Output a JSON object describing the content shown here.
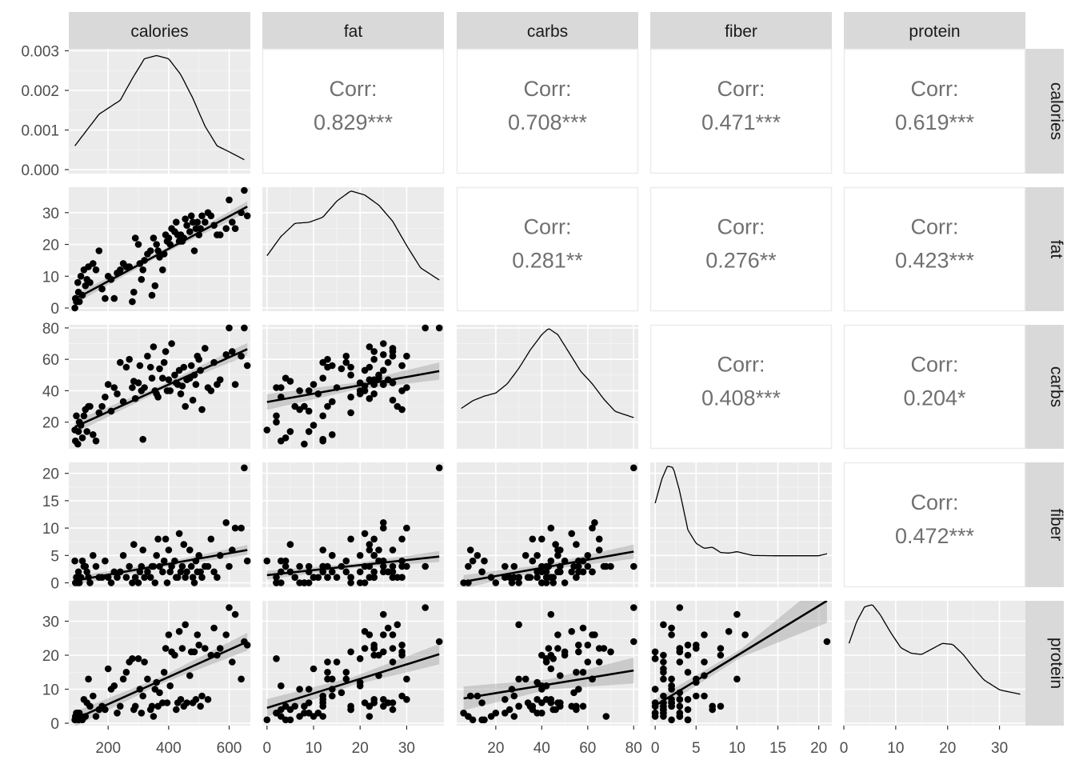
{
  "chart_data": {
    "type": "scatter-matrix",
    "variables": [
      "calories",
      "fat",
      "carbs",
      "fiber",
      "protein"
    ],
    "strip_labels": [
      "calories",
      "fat",
      "carbs",
      "fiber",
      "protein"
    ],
    "corr_label": "Corr:",
    "correlations": [
      {
        "row": "calories",
        "col": "fat",
        "value": "0.829***"
      },
      {
        "row": "calories",
        "col": "carbs",
        "value": "0.708***"
      },
      {
        "row": "calories",
        "col": "fiber",
        "value": "0.471***"
      },
      {
        "row": "calories",
        "col": "protein",
        "value": "0.619***"
      },
      {
        "row": "fat",
        "col": "carbs",
        "value": "0.281**"
      },
      {
        "row": "fat",
        "col": "fiber",
        "value": "0.276**"
      },
      {
        "row": "fat",
        "col": "protein",
        "value": "0.423***"
      },
      {
        "row": "carbs",
        "col": "fiber",
        "value": "0.408***"
      },
      {
        "row": "carbs",
        "col": "protein",
        "value": "0.204*"
      },
      {
        "row": "fiber",
        "col": "protein",
        "value": "0.472***"
      }
    ],
    "x_ranges": {
      "calories": [
        70,
        670
      ],
      "fat": [
        -1,
        38
      ],
      "carbs": [
        3,
        82
      ],
      "fiber": [
        -0.6,
        21.6
      ],
      "protein": [
        0,
        35
      ]
    },
    "y_ranges": {
      "fat": [
        -1,
        38
      ],
      "carbs": [
        3,
        82
      ],
      "fiber": [
        -0.8,
        22
      ],
      "protein": [
        -0.7,
        36
      ]
    },
    "density_yrange": [
      -0.0001,
      0.00305
    ],
    "x_ticks": {
      "calories": [
        200,
        400,
        600
      ],
      "fat": [
        0,
        10,
        20,
        30
      ],
      "carbs": [
        20,
        40,
        60,
        80
      ],
      "fiber": [
        0,
        5,
        10,
        15,
        20
      ],
      "protein": [
        0,
        10,
        20,
        30
      ]
    },
    "x_tick_labels": {
      "calories": [
        "200",
        "400",
        "600"
      ],
      "fat": [
        "0",
        "10",
        "20",
        "30"
      ],
      "carbs": [
        "20",
        "40",
        "60",
        "80"
      ],
      "fiber": [
        "0",
        "5",
        "10",
        "15",
        "20"
      ],
      "protein": [
        "0",
        "10",
        "20",
        "30"
      ]
    },
    "y_ticks": {
      "density": [
        0,
        0.001,
        0.002,
        0.003
      ],
      "fat": [
        0,
        10,
        20,
        30
      ],
      "carbs": [
        20,
        40,
        60,
        80
      ],
      "fiber": [
        0,
        5,
        10,
        15,
        20
      ],
      "protein": [
        0,
        10,
        20,
        30
      ]
    },
    "y_tick_labels": {
      "density": [
        "0.000",
        "0.001",
        "0.002",
        "0.003"
      ],
      "fat": [
        "0",
        "10",
        "20",
        "30"
      ],
      "carbs": [
        "20",
        "40",
        "60",
        "80"
      ],
      "fiber": [
        "0",
        "5",
        "10",
        "15",
        "20"
      ],
      "protein": [
        "0",
        "10",
        "20",
        "30"
      ]
    },
    "densities": {
      "calories": {
        "x": [
          90,
          130,
          170,
          200,
          240,
          280,
          320,
          360,
          400,
          440,
          480,
          520,
          560,
          600,
          650
        ],
        "y": [
          0.0006,
          0.001,
          0.0014,
          0.00155,
          0.00175,
          0.0023,
          0.0028,
          0.00288,
          0.0028,
          0.0024,
          0.0018,
          0.0011,
          0.0006,
          0.00045,
          0.00025
        ]
      },
      "fat": {
        "x": [
          0,
          3,
          6,
          9,
          12,
          15,
          18,
          21,
          24,
          27,
          30,
          33,
          37
        ],
        "y": [
          0.028,
          0.047,
          0.06,
          0.061,
          0.066,
          0.082,
          0.092,
          0.088,
          0.078,
          0.062,
          0.038,
          0.016,
          0.004
        ]
      },
      "carbs": {
        "x": [
          5,
          10,
          15,
          20,
          25,
          30,
          35,
          40,
          43,
          47,
          52,
          57,
          62,
          67,
          72,
          80
        ],
        "y": [
          0.004,
          0.0065,
          0.008,
          0.009,
          0.012,
          0.017,
          0.023,
          0.028,
          0.03,
          0.028,
          0.022,
          0.016,
          0.012,
          0.007,
          0.003,
          0.001
        ]
      },
      "fiber": {
        "x": [
          0,
          0.8,
          1.5,
          2.2,
          3,
          4,
          5,
          6,
          7,
          8,
          9,
          10,
          11,
          12,
          15,
          20,
          21
        ],
        "y": [
          0.18,
          0.26,
          0.305,
          0.3,
          0.22,
          0.09,
          0.045,
          0.028,
          0.032,
          0.014,
          0.012,
          0.017,
          0.01,
          0.004,
          0.003,
          0.003,
          0.01
        ]
      },
      "protein": {
        "x": [
          1,
          2.5,
          4,
          5.5,
          7,
          9,
          11,
          13,
          15,
          17,
          19,
          21,
          23,
          25,
          27,
          30,
          34
        ],
        "y": [
          0.052,
          0.072,
          0.085,
          0.087,
          0.078,
          0.062,
          0.048,
          0.043,
          0.042,
          0.047,
          0.052,
          0.051,
          0.042,
          0.03,
          0.019,
          0.01,
          0.006
        ]
      }
    },
    "observations": {
      "calories": [
        90,
        92,
        95,
        100,
        102,
        105,
        110,
        115,
        120,
        125,
        130,
        135,
        140,
        150,
        160,
        170,
        180,
        190,
        200,
        210,
        220,
        230,
        240,
        250,
        260,
        270,
        280,
        285,
        290,
        300,
        305,
        310,
        315,
        320,
        330,
        340,
        345,
        350,
        355,
        360,
        365,
        370,
        380,
        385,
        390,
        395,
        400,
        405,
        410,
        420,
        425,
        430,
        435,
        440,
        445,
        450,
        455,
        460,
        470,
        475,
        480,
        485,
        490,
        495,
        500,
        505,
        510,
        520,
        530,
        540,
        550,
        560,
        570,
        590,
        600,
        610,
        620,
        640,
        650,
        660
      ],
      "fat": [
        0,
        3,
        2,
        8,
        5,
        2,
        10,
        4,
        12,
        7,
        9,
        13,
        8,
        14,
        12,
        18,
        6,
        3,
        10,
        9,
        3,
        11,
        12,
        14,
        13,
        13,
        2,
        5,
        22,
        20,
        14,
        9,
        12,
        15,
        17,
        18,
        4,
        22,
        7,
        20,
        18,
        16,
        12,
        17,
        23,
        21,
        22,
        20,
        25,
        24,
        27,
        23,
        21,
        23,
        21,
        22,
        28,
        26,
        24,
        29,
        27,
        18,
        25,
        27,
        23,
        25,
        29,
        27,
        30,
        29,
        26,
        23,
        23,
        25,
        34,
        27,
        25,
        30,
        37,
        29
      ],
      "carbs": [
        15,
        8,
        24,
        6,
        14,
        20,
        18,
        10,
        24,
        28,
        14,
        30,
        30,
        12,
        8,
        26,
        30,
        36,
        44,
        27,
        42,
        38,
        58,
        33,
        55,
        60,
        42,
        46,
        35,
        45,
        56,
        40,
        9,
        42,
        62,
        55,
        48,
        68,
        40,
        38,
        36,
        54,
        48,
        58,
        65,
        40,
        47,
        40,
        70,
        50,
        45,
        44,
        53,
        38,
        43,
        55,
        30,
        47,
        48,
        56,
        34,
        50,
        44,
        62,
        60,
        53,
        28,
        67,
        42,
        40,
        58,
        44,
        47,
        63,
        80,
        65,
        44,
        62,
        80,
        56
      ],
      "fiber": [
        4,
        0,
        1,
        0,
        2,
        0,
        1,
        4,
        3,
        3,
        2,
        1,
        0,
        5,
        3,
        1,
        1,
        4,
        1,
        0,
        2,
        1,
        2,
        5,
        1,
        3,
        0,
        7,
        1,
        0,
        2,
        3,
        6,
        1,
        2,
        1,
        3,
        3,
        0,
        5,
        8,
        3,
        2,
        4,
        8,
        0,
        6,
        2,
        3,
        4,
        1,
        1,
        9,
        2,
        3,
        7,
        1,
        2,
        6,
        3,
        1,
        0,
        4,
        2,
        5,
        2,
        1,
        3,
        3,
        8,
        2,
        1,
        5,
        11,
        3,
        6,
        10,
        10,
        21,
        4
      ],
      "protein": [
        1,
        2,
        3,
        3,
        1,
        3,
        2,
        1,
        7,
        2,
        6,
        13,
        5,
        8,
        2,
        4,
        5,
        4,
        16,
        10,
        11,
        3,
        5,
        13,
        15,
        18,
        19,
        4,
        5,
        19,
        10,
        3,
        8,
        18,
        13,
        4,
        5,
        2,
        10,
        12,
        5,
        9,
        6,
        15,
        22,
        6,
        26,
        11,
        21,
        20,
        4,
        6,
        27,
        7,
        22,
        5,
        29,
        6,
        14,
        21,
        6,
        21,
        7,
        26,
        23,
        5,
        8,
        22,
        7,
        20,
        28,
        20,
        22,
        26,
        34,
        18,
        32,
        13,
        24,
        23
      ]
    },
    "fits": {
      "calories|fat": [
        [
          90,
          2.8
        ],
        [
          660,
          31.9
        ]
      ],
      "calories|carbs": [
        [
          90,
          17.0
        ],
        [
          660,
          66.5
        ]
      ],
      "calories|fiber": [
        [
          90,
          0.4
        ],
        [
          660,
          6.0
        ]
      ],
      "calories|protein": [
        [
          90,
          1.2
        ],
        [
          660,
          24.0
        ]
      ],
      "fat|carbs": [
        [
          0,
          32.8
        ],
        [
          37,
          52.5
        ]
      ],
      "fat|fiber": [
        [
          0,
          1.4
        ],
        [
          37,
          4.8
        ]
      ],
      "fat|protein": [
        [
          0,
          4.5
        ],
        [
          37,
          20.3
        ]
      ],
      "carbs|fiber": [
        [
          6,
          0.2
        ],
        [
          80,
          5.7
        ]
      ],
      "carbs|protein": [
        [
          6,
          7.3
        ],
        [
          80,
          15.5
        ]
      ],
      "fiber|protein": [
        [
          0,
          5.2
        ],
        [
          21,
          36.0
        ]
      ]
    },
    "ribbon_halfwidth": {
      "calories|fat": [
        1.5,
        0.7,
        1.7
      ],
      "calories|carbs": [
        4.0,
        1.7,
        4.0
      ],
      "calories|fiber": [
        0.8,
        0.4,
        0.9
      ],
      "calories|protein": [
        2.2,
        1.0,
        2.6
      ],
      "fat|carbs": [
        5.0,
        2.3,
        5.5
      ],
      "fat|fiber": [
        0.8,
        0.4,
        1.0
      ],
      "fat|protein": [
        2.6,
        1.2,
        3.0
      ],
      "carbs|fiber": [
        1.2,
        0.5,
        1.3
      ],
      "carbs|protein": [
        3.5,
        1.5,
        3.8
      ],
      "fiber|protein": [
        1.8,
        1.2,
        6.5
      ]
    }
  }
}
